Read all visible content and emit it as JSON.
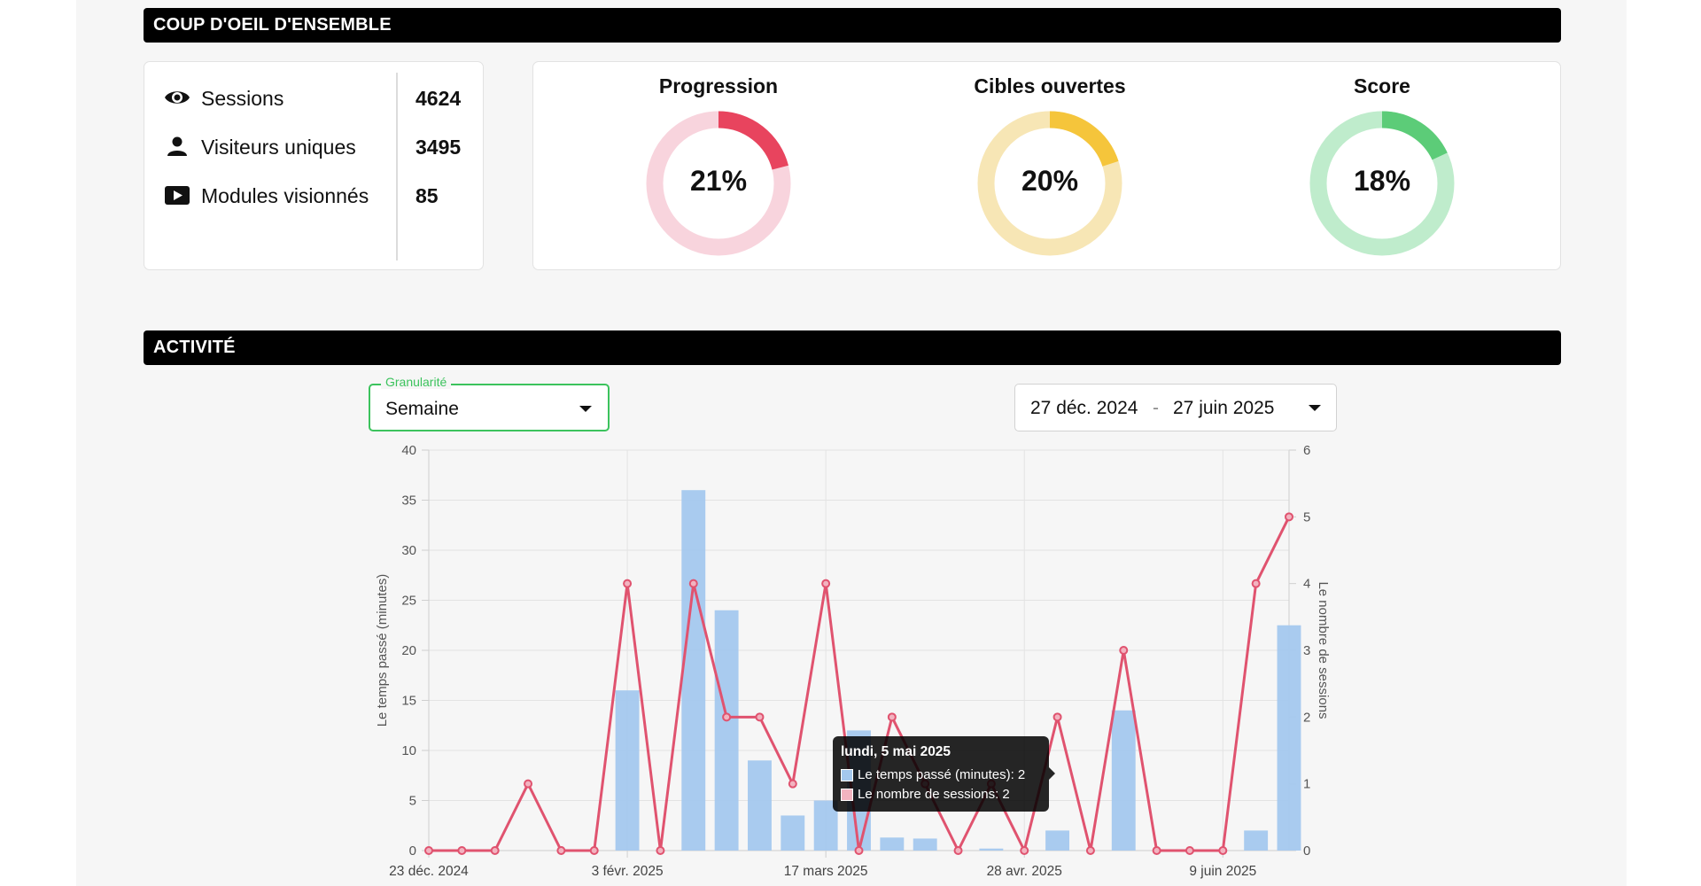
{
  "overview": {
    "header": "COUP D'OEIL D'ENSEMBLE",
    "stats": [
      {
        "icon": "eye-icon",
        "label": "Sessions",
        "value": "4624"
      },
      {
        "icon": "user-icon",
        "label": "Visiteurs uniques",
        "value": "3495"
      },
      {
        "icon": "play-icon",
        "label": "Modules visionnés",
        "value": "85"
      }
    ],
    "donuts": [
      {
        "title": "Progression",
        "value": "21%",
        "fraction": 0.21,
        "color": "#e8445e",
        "track": "#f8d4dd"
      },
      {
        "title": "Cibles ouvertes",
        "value": "20%",
        "fraction": 0.2,
        "color": "#f5c53b",
        "track": "#f7e6b5"
      },
      {
        "title": "Score",
        "value": "18%",
        "fraction": 0.18,
        "color": "#5ccc78",
        "track": "#bfeccc"
      }
    ]
  },
  "activity": {
    "header": "ACTIVITÉ",
    "granularity": {
      "legend": "Granularité",
      "value": "Semaine"
    },
    "date_range": {
      "start": "27 déc. 2024",
      "separator": "-",
      "end": "27 juin 2025"
    },
    "tooltip": {
      "title": "lundi, 5 mai 2025",
      "row1": "Le temps passé (minutes): 2",
      "row2": "Le nombre de sessions: 2"
    }
  },
  "colors": {
    "bar": "#a4c8ee",
    "line": "#e0536f",
    "accent_green": "#3cc35d"
  },
  "chart_data": {
    "type": "bar",
    "x": [
      "23 déc. 2024",
      "30 déc. 2024",
      "6 janv. 2025",
      "13 janv. 2025",
      "20 janv. 2025",
      "27 janv. 2025",
      "3 févr. 2025",
      "10 févr. 2025",
      "17 févr. 2025",
      "24 févr. 2025",
      "3 mars 2025",
      "10 mars 2025",
      "17 mars 2025",
      "24 mars 2025",
      "31 mars 2025",
      "7 avr. 2025",
      "14 avr. 2025",
      "21 avr. 2025",
      "28 avr. 2025",
      "5 mai 2025",
      "12 mai 2025",
      "19 mai 2025",
      "26 mai 2025",
      "2 juin 2025",
      "9 juin 2025",
      "16 juin 2025",
      "23 juin 2025"
    ],
    "tick_labels": [
      "23 déc. 2024",
      "3 févr. 2025",
      "17 mars 2025",
      "28 avr. 2025",
      "9 juin 2025"
    ],
    "series": [
      {
        "name": "Le temps passé (minutes)",
        "axis": "left",
        "values": [
          0,
          0,
          0,
          0,
          0,
          0,
          16,
          0,
          36,
          24,
          9,
          3.5,
          5,
          12,
          1.3,
          1.2,
          0,
          0.2,
          0,
          2,
          0,
          14,
          0,
          0,
          0,
          2,
          22.5
        ]
      },
      {
        "name": "Le nombre de sessions",
        "axis": "right",
        "values": [
          0,
          0,
          0,
          1,
          0,
          0,
          4,
          0,
          4,
          2,
          2,
          1,
          4,
          0,
          2,
          1,
          0,
          1,
          0,
          2,
          0,
          3,
          0,
          0,
          0,
          4,
          5
        ]
      }
    ],
    "ylabel": "Le temps passé (minutes)",
    "y2label": "Le nombre de sessions",
    "ylim": [
      0,
      40
    ],
    "y2lim": [
      0,
      6
    ],
    "y_ticks": [
      0,
      5,
      10,
      15,
      20,
      25,
      30,
      35,
      40
    ],
    "y2_ticks": [
      0,
      1,
      2,
      3,
      4,
      5,
      6
    ],
    "grid": true
  }
}
